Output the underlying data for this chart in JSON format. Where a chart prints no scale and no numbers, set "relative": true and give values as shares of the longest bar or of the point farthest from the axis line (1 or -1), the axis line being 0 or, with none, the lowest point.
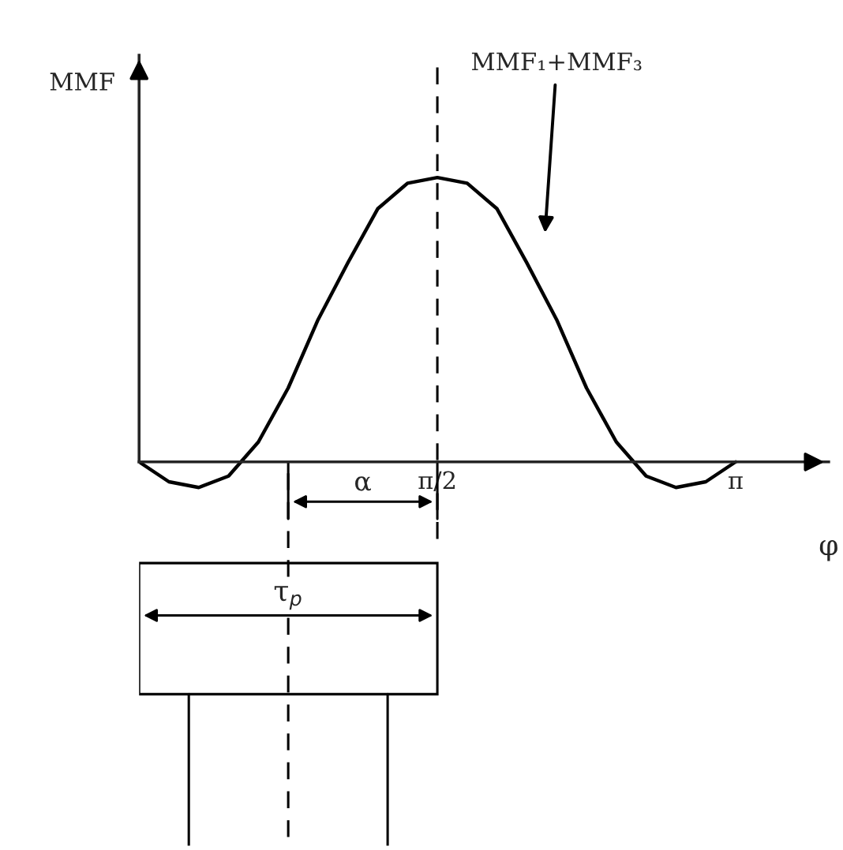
{
  "chart_data": {
    "type": "line",
    "relative": true,
    "ylabel": "MMF",
    "xlabel": "φ",
    "categories": [
      null,
      null,
      null,
      null,
      null,
      null,
      null,
      null,
      null,
      null,
      "π/2",
      null,
      null,
      null,
      null,
      null,
      null,
      null,
      null,
      null,
      "π"
    ],
    "series": [
      {
        "color": "#000000",
        "values": [
          0,
          -0.07,
          -0.09,
          -0.05,
          0.07,
          0.26,
          0.5,
          0.7,
          0.89,
          0.98,
          1,
          0.98,
          0.89,
          0.7,
          0.5,
          0.26,
          0.07,
          -0.05,
          -0.09,
          -0.07,
          0
        ]
      }
    ],
    "annotations": [
      "MMF₁+MMF₃",
      "α",
      "τ$_{p}$"
    ],
    "grid": false,
    "legend": false,
    "marker": "none",
    "line_style": "solid"
  }
}
